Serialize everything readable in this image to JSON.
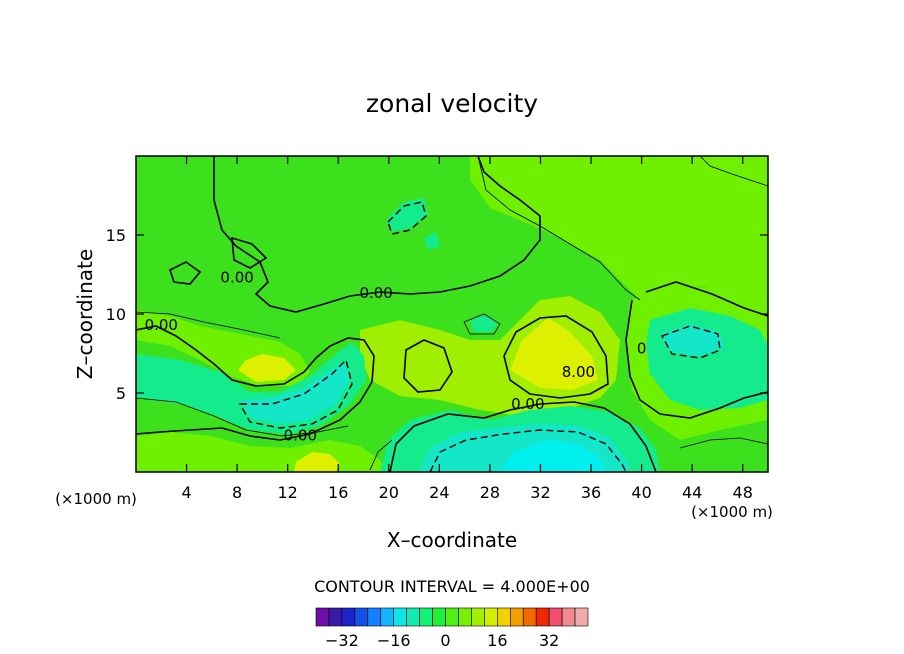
{
  "chart_data": {
    "type": "contour",
    "title": "zonal velocity",
    "xlabel": "X–coordinate",
    "ylabel": "Z–coordinate",
    "x_unit_left": "(×1000 m)",
    "x_unit_right": "(×1000 m)",
    "xlim": [
      0,
      50
    ],
    "ylim": [
      0,
      20
    ],
    "x_ticks": [
      4,
      8,
      12,
      16,
      20,
      24,
      28,
      32,
      36,
      40,
      44,
      48
    ],
    "y_ticks": [
      5,
      10,
      15
    ],
    "contour_interval_text": "CONTOUR INTERVAL = 4.000E+00",
    "contour_labels": [
      {
        "text": "0.00",
        "x": 8,
        "z": 12
      },
      {
        "text": "0.00",
        "x": 19,
        "z": 11
      },
      {
        "text": "0.00",
        "x": 2,
        "z": 9
      },
      {
        "text": "0.00",
        "x": 13,
        "z": 2
      },
      {
        "text": "0.00",
        "x": 31,
        "z": 4
      },
      {
        "text": "8.00",
        "x": 35,
        "z": 6
      },
      {
        "text": "0",
        "x": 40,
        "z": 7.5
      }
    ],
    "colorbar": {
      "levels": [
        -36,
        -32,
        -28,
        -24,
        -20,
        -16,
        -12,
        -8,
        -4,
        0,
        4,
        8,
        12,
        16,
        20,
        24,
        28,
        32,
        36
      ],
      "tick_labels": [
        "−32",
        "−16",
        "0",
        "16",
        "32"
      ],
      "tick_values": [
        -32,
        -16,
        0,
        16,
        32
      ],
      "colors": [
        "#6f0dab",
        "#3a1aa8",
        "#1c24c8",
        "#1450e6",
        "#1480ff",
        "#14b4ff",
        "#0ee6e6",
        "#14ebb4",
        "#14f078",
        "#1ef03c",
        "#50f014",
        "#78f000",
        "#a0f000",
        "#d2f000",
        "#f0d200",
        "#f0a000",
        "#f06a00",
        "#f02800",
        "#f0506e",
        "#f08c8c",
        "#f0aaaa"
      ]
    },
    "colors": {
      "background_field": "#3ce01c",
      "weak_negative": "#14eb8c",
      "moderate_negative": "#14e6c8",
      "strong_negative": "#00f0f0",
      "weak_positive": "#6ef000",
      "moderate_positive": "#a0ee00",
      "strong_positive": "#dcf000"
    },
    "regions": [
      {
        "kind": "positive",
        "value": 4,
        "center": [
          30,
          14
        ],
        "note": "upper-right band"
      },
      {
        "kind": "positive",
        "value": 12,
        "center": [
          33,
          7.5
        ]
      },
      {
        "kind": "positive",
        "value": 12,
        "center": [
          10,
          6.5
        ]
      },
      {
        "kind": "negative",
        "value": -8,
        "center": [
          13,
          5
        ]
      },
      {
        "kind": "negative",
        "value": -12,
        "center": [
          33,
          1.5
        ]
      },
      {
        "kind": "negative",
        "value": -4,
        "center": [
          44,
          8
        ]
      }
    ]
  }
}
